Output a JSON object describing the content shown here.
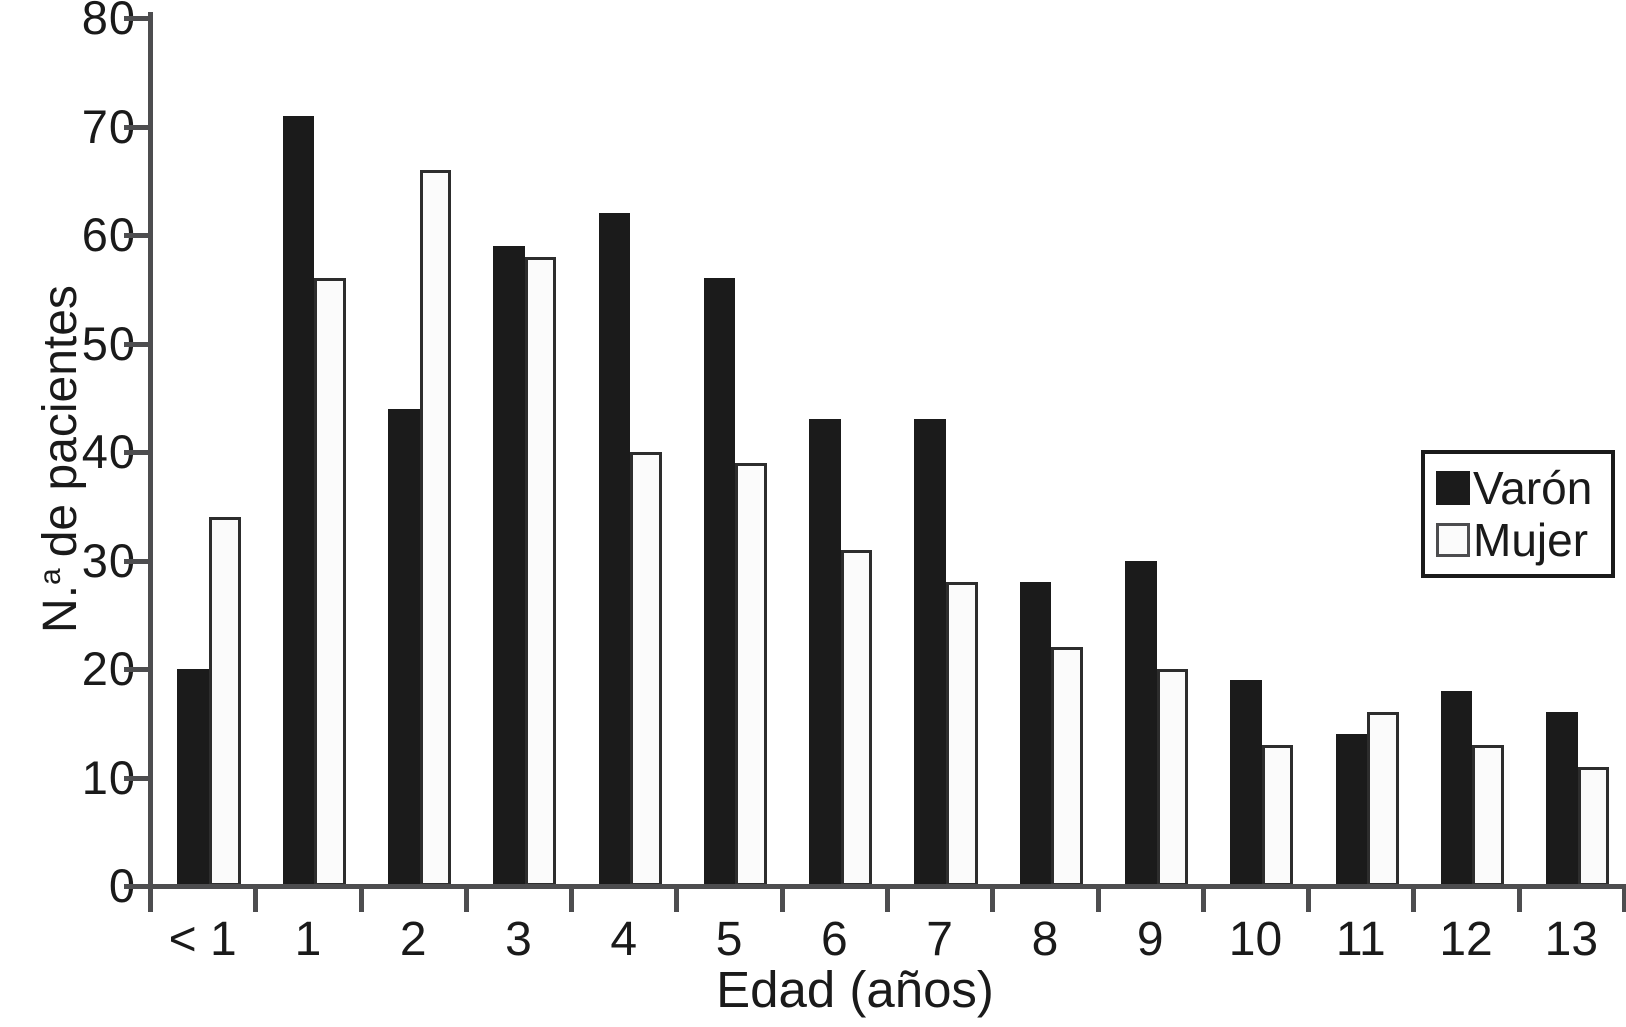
{
  "chart_data": {
    "type": "bar",
    "categories": [
      "< 1",
      "1",
      "2",
      "3",
      "4",
      "5",
      "6",
      "7",
      "8",
      "9",
      "10",
      "11",
      "12",
      "13"
    ],
    "series": [
      {
        "name": "Varón",
        "color": "#1b1b1b",
        "values": [
          20,
          71,
          44,
          59,
          62,
          56,
          43,
          43,
          28,
          30,
          19,
          14,
          18,
          16
        ]
      },
      {
        "name": "Mujer",
        "color": "#fbfbfb",
        "values": [
          34,
          56,
          66,
          58,
          40,
          39,
          31,
          28,
          22,
          20,
          13,
          16,
          13,
          11
        ]
      }
    ],
    "xlabel": "Edad (años)",
    "ylabel": "N.ª de pacientes",
    "ylabel_prefix": "N.",
    "ylabel_sup": "a",
    "ylabel_rest": "de pacientes",
    "ylim": [
      0,
      80
    ],
    "yticks": [
      0,
      10,
      20,
      30,
      40,
      50,
      60,
      70,
      80
    ],
    "grid": false,
    "legend_position": "middle-right",
    "axis_color": "#4d4d4f",
    "text_color": "#1a1a1a"
  },
  "legend": {
    "items": [
      {
        "label": "Varón",
        "swatch": "black-filled-square"
      },
      {
        "label": "Mujer",
        "swatch": "white-square"
      }
    ]
  }
}
